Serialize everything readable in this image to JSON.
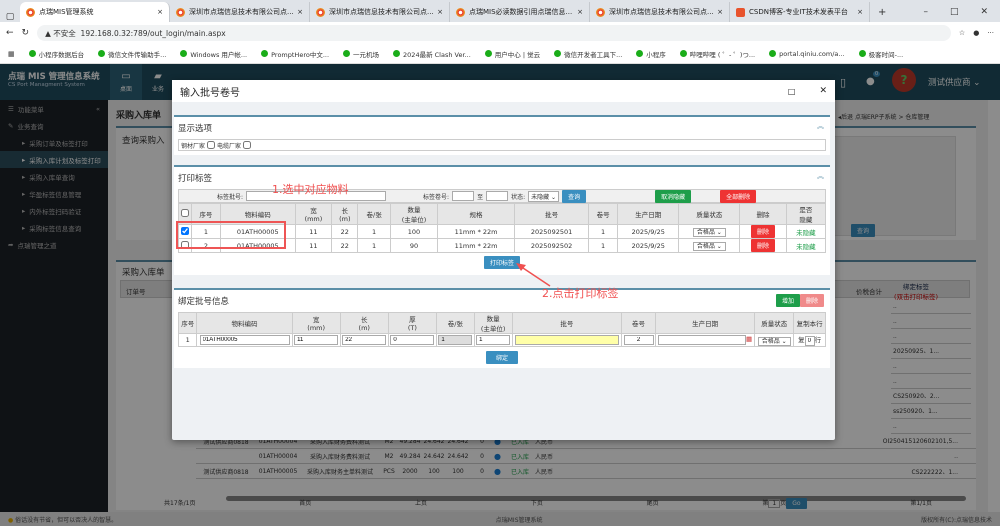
{
  "browser": {
    "tabs": [
      {
        "title": "点瑞MIS管理系统",
        "active": true
      },
      {
        "title": "深圳市点瑞信息技术有限公司点..."
      },
      {
        "title": "深圳市点瑞信息技术有限公司点..."
      },
      {
        "title": "点瑞MIS必读数据引用点瑞信息..."
      },
      {
        "title": "深圳市点瑞信息技术有限公司点..."
      },
      {
        "title": "CSDN博客-专业IT技术发表平台"
      }
    ],
    "security": "不安全",
    "url": "192.168.0.32:789/out_login/main.aspx",
    "bookmarks": [
      "小程序数据后台",
      "微信文件传输助手...",
      "Windows 用户帐...",
      "PromptHero中文... ",
      "一元机场",
      "2024最新 Clash Ver...",
      "用户中心 | 觉云",
      "微信开发者工具下...",
      "小程序",
      "哔哩哔哩 ( ゜- ゜)つ...",
      "portal.qiniu.com/a...",
      "极客时间-..."
    ]
  },
  "app": {
    "logo": "点瑞 MIS 管理信息系统",
    "logo_sub": "CS Port Managment System",
    "nav": [
      "桌面",
      "业务"
    ],
    "user": "测试供应商",
    "msg_count": "0",
    "breadcrumb": [
      "后退",
      "点瑞ERP子系统",
      "仓库管理"
    ]
  },
  "sidebar": {
    "menu": "功能菜单",
    "group": "业务查询",
    "items": [
      "采购订单及标签打印",
      "采购入库计划及标签打印",
      "采购入库单查询",
      "华盈标签信息管理",
      "内外标签扫码验证",
      "采购标签信息查询"
    ],
    "active": 1,
    "other": "点瑞管理之道"
  },
  "background": {
    "title": "采购入库单",
    "query_title": "查询采购入",
    "list_title": "采购入库单",
    "query_btn": "查询",
    "col_first": "订单号",
    "col_tax": "税额",
    "col_total": "价税合计",
    "col_label": "绑定标签",
    "col_label_hint": "(双击打印标签)",
    "label_values": [
      "..",
      "..",
      "..",
      "20250925、1...",
      "..",
      "..",
      "CS250920、2...",
      "ss250920、1...",
      ".."
    ],
    "rows": [
      [
        "测试供应商0818",
        "01ATH00004",
        "采购入库财务费料测试",
        "M2",
        "49.284",
        "24.642",
        "24.642",
        "0",
        "已入库",
        "人民币",
        "OI250415120602101,5..."
      ],
      [
        "",
        "01ATH00004",
        "采购入库财务费料测试",
        "M2",
        "49.284",
        "24.642",
        "24.642",
        "0",
        "已入库",
        "人民币",
        ".."
      ],
      [
        "测试供应商0818",
        "01ATH00005",
        "采购入库财务主单料测试",
        "PCS",
        "2000",
        "100",
        "100",
        "0",
        "已入库",
        "人民币",
        "CS222222、1..."
      ]
    ],
    "pager": {
      "total": "共17条/1页",
      "first": "首页",
      "prev": "上页",
      "next": "下页",
      "last": "尾页",
      "goto_pre": "第",
      "page": "1",
      "goto_post": "页",
      "go": "Go",
      "current": "第1/1页"
    }
  },
  "footer": {
    "tip": "俗话没有节省，但可以否决人的智慧。",
    "center": "点瑞MIS管理系统",
    "right": "版权所有(C):点瑞信息技术"
  },
  "modal": {
    "title": "输入批号卷号",
    "display": {
      "title": "显示选项",
      "opt1": "钢材厂家",
      "opt2": "电缆厂家"
    },
    "print": {
      "title": "打印标签",
      "batch_label": "标签批号:",
      "roll_label": "标签卷号:",
      "to": "至",
      "status_label": "状态:",
      "status_value": "未隐藏",
      "query": "查询",
      "cancel_hide": "取消隐藏",
      "delete_all": "全部删除",
      "headers": [
        "序号",
        "物料编码",
        "宽\n(mm)",
        "长\n(m)",
        "卷/张",
        "数量\n(主单位)",
        "规格",
        "批号",
        "卷号",
        "生产日期",
        "质量状态",
        "删除",
        "是否\n隐藏"
      ],
      "rows": [
        {
          "checked": true,
          "cells": [
            "1",
            "01ATH00005",
            "11",
            "22",
            "1",
            "100",
            "11mm * 22m",
            "2025092501",
            "1",
            "2025/9/25"
          ],
          "quality": "合格品",
          "del": "删除",
          "hidden": "未隐藏"
        },
        {
          "checked": false,
          "cells": [
            "2",
            "01ATH00005",
            "11",
            "22",
            "1",
            "90",
            "11mm * 22m",
            "2025092502",
            "1",
            "2025/9/25"
          ],
          "quality": "合格品",
          "del": "删除",
          "hidden": "未隐藏"
        }
      ],
      "print_btn": "打印标签"
    },
    "bind": {
      "title": "绑定批号信息",
      "add": "增加",
      "del": "删除",
      "headers": [
        "序号",
        "物料编码",
        "宽\n(mm)",
        "长\n(m)",
        "厚\n(T)",
        "卷/张",
        "数量\n(主单位)",
        "批号",
        "卷号",
        "生产日期",
        "质量状态",
        "复制本行"
      ],
      "row": {
        "no": "1",
        "code": "01ATH00005",
        "w": "11",
        "l": "22",
        "t": "0",
        "roll": "1",
        "qty": "1",
        "batch": "",
        "vol": "2",
        "date": "",
        "quality": "合格品",
        "copy_pre": "复",
        "copy": "0",
        "copy_post": "行"
      },
      "bind_btn": "绑定"
    },
    "annotations": [
      "1.选中对应物料",
      "2.点击打印标签"
    ]
  },
  "colors": {
    "header": "#1f4e5f",
    "accent": "#3a8fc0",
    "danger": "#ee3333",
    "success": "#1e9e4a",
    "annotation": "#f05050"
  }
}
